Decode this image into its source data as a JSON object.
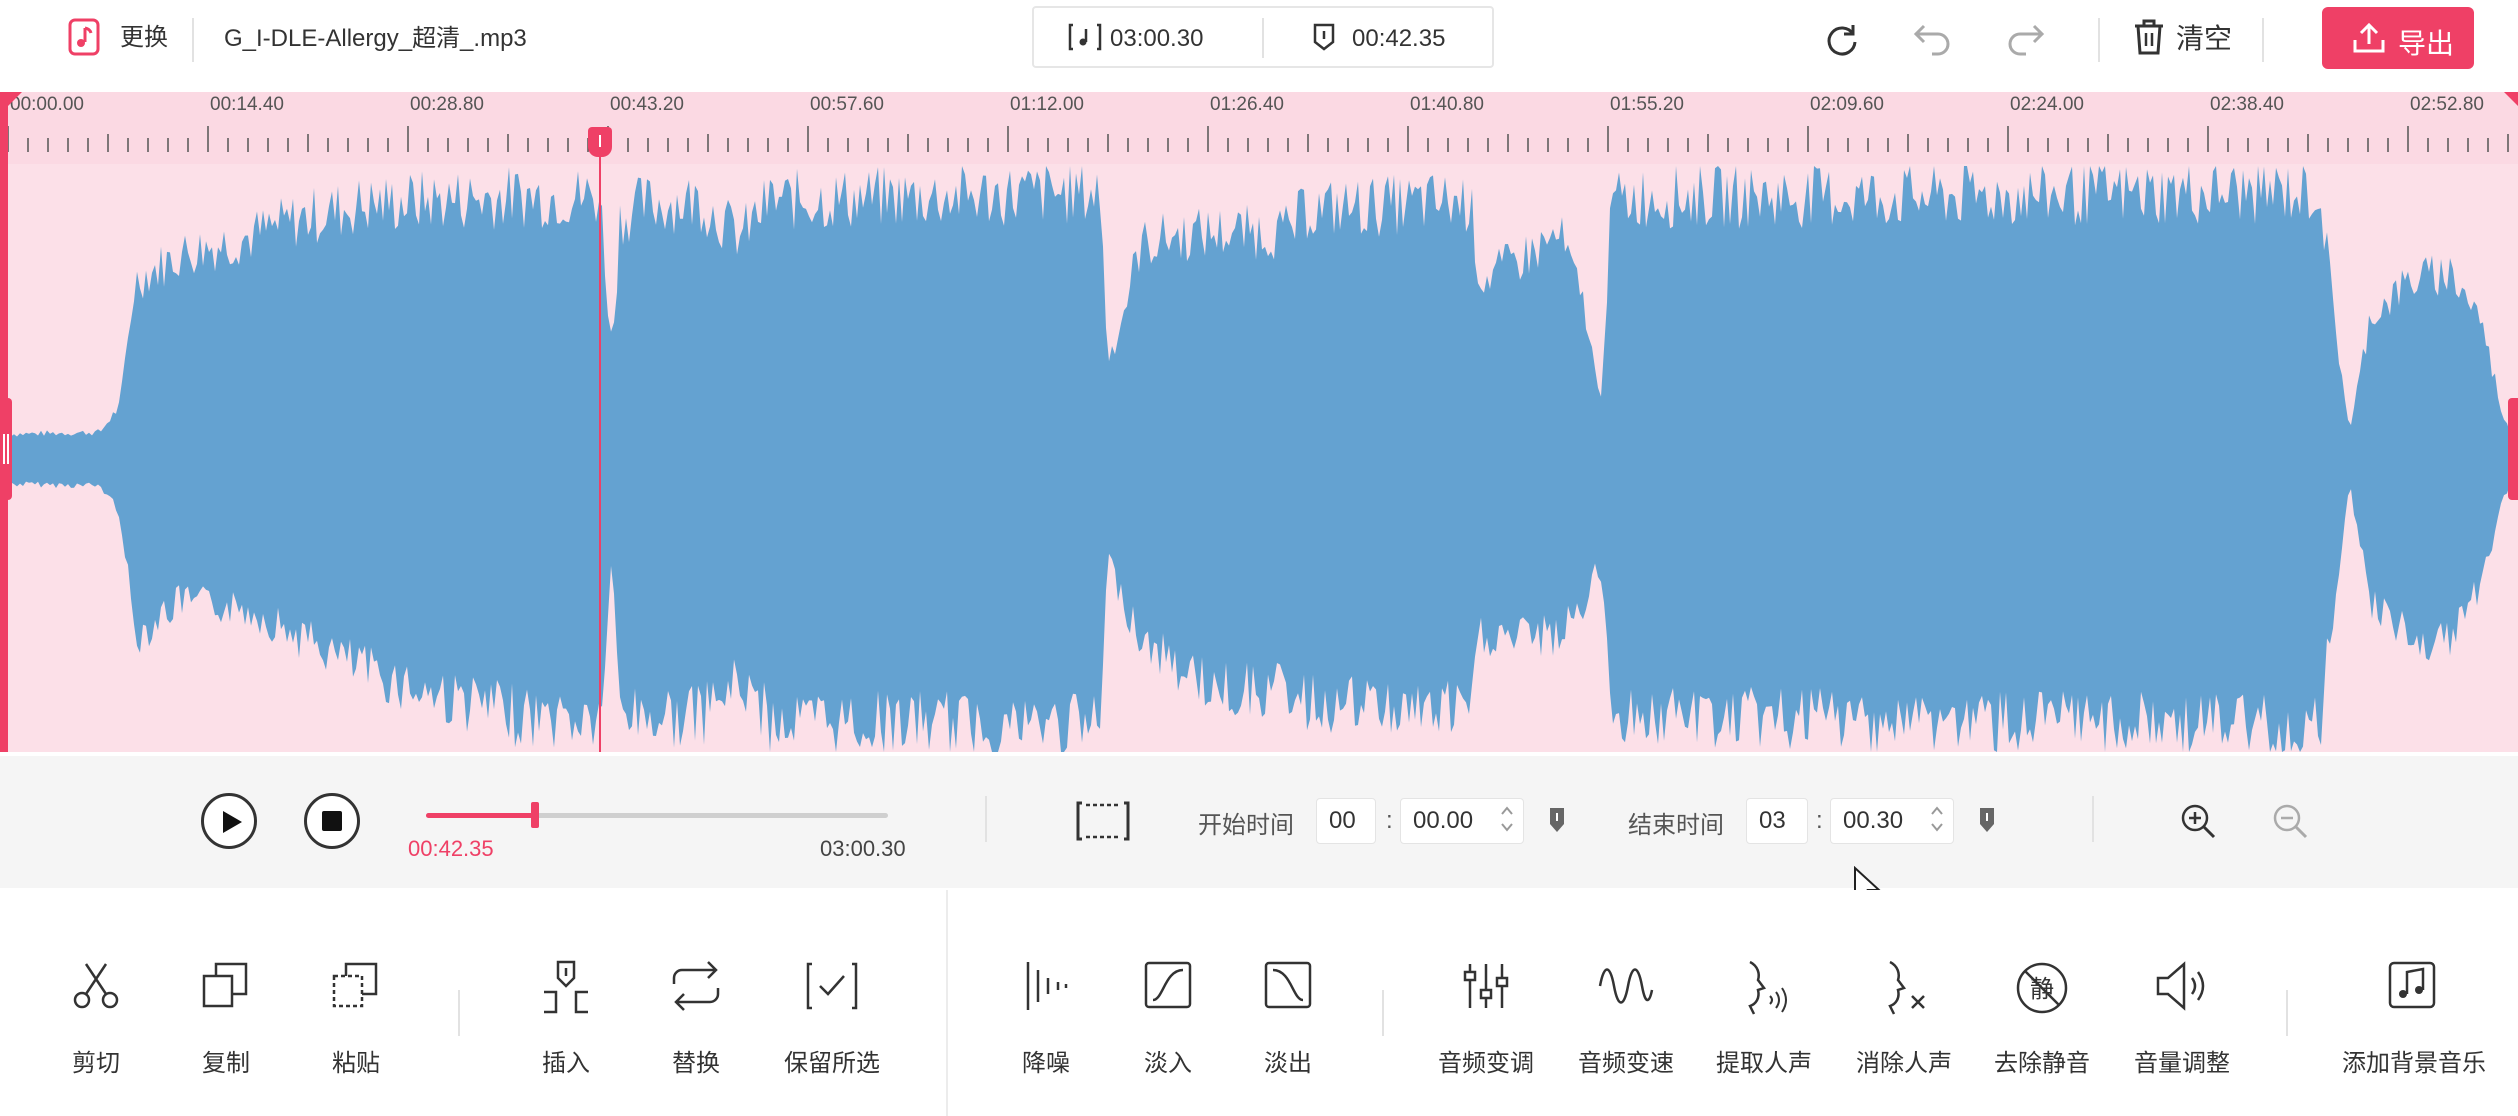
{
  "header": {
    "replace_label": "更换",
    "file_name": "G_I-DLE-Allergy_超清_.mp3",
    "total_duration": "03:00.30",
    "cursor_time": "00:42.35",
    "clear_label": "清空",
    "export_label": "导出",
    "icons": [
      "music-file-icon",
      "total-duration-icon",
      "marker-icon",
      "reset-icon",
      "undo-icon",
      "redo-icon",
      "trash-icon",
      "upload-icon"
    ]
  },
  "timeline": {
    "labels": [
      "00:00.00",
      "00:14.40",
      "00:28.80",
      "00:43.20",
      "00:57.60",
      "01:12.00",
      "01:26.40",
      "01:40.80",
      "01:55.20",
      "02:09.60",
      "02:24.00",
      "02:38.40",
      "02:52.80"
    ],
    "playhead_seconds": 42.35,
    "total_seconds": 180.3
  },
  "transport": {
    "current_time": "00:42.35",
    "total_time": "03:00.30",
    "progress_fraction": 0.235,
    "start_label": "开始时间",
    "start_min": "00",
    "start_sec": "00.00",
    "end_label": "结束时间",
    "end_min": "03",
    "end_sec": "00.30"
  },
  "tools": {
    "cut": "剪切",
    "copy": "复制",
    "paste": "粘贴",
    "insert": "插入",
    "replace": "替换",
    "keep_selection": "保留所选",
    "denoise": "降噪",
    "fade_in": "淡入",
    "fade_out": "淡出",
    "pitch": "音频变调",
    "speed": "音频变速",
    "extract_vocal": "提取人声",
    "remove_vocal": "消除人声",
    "remove_silence": "去除静音",
    "silence_glyph": "静",
    "volume": "音量调整",
    "add_bgm": "添加背景音乐"
  },
  "colors": {
    "accent": "#ef4066",
    "waveform": "#64a2d1",
    "wave_bg": "#fce0e8"
  }
}
